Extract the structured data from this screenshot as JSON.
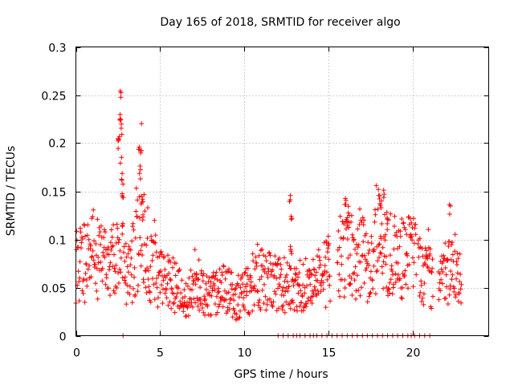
{
  "chart_data": {
    "type": "scatter",
    "title": "Day 165 of 2018, SRMTID for receiver algo",
    "xlabel": "GPS time / hours",
    "ylabel": "SRMTID / TECUs",
    "xlim": [
      0,
      24.5
    ],
    "ylim": [
      0,
      0.3
    ],
    "x_ticks": [
      0,
      5,
      10,
      15,
      20
    ],
    "x_tick_labels": [
      "0",
      "5",
      "10",
      "15",
      "20"
    ],
    "y_ticks": [
      0,
      0.05,
      0.1,
      0.15,
      0.2,
      0.25,
      0.3
    ],
    "y_tick_labels": [
      "0",
      "0.05",
      "0.1",
      "0.15",
      "0.2",
      "0.25",
      "0.3"
    ],
    "grid": true,
    "marker": "+",
    "color": "#ff0000",
    "series": [
      {
        "name": "SRMTID",
        "trend": [
          [
            0.0,
            0.075
          ],
          [
            0.5,
            0.075
          ],
          [
            1.0,
            0.085
          ],
          [
            1.5,
            0.08
          ],
          [
            2.0,
            0.07
          ],
          [
            2.5,
            0.08
          ],
          [
            2.7,
            0.15
          ],
          [
            3.0,
            0.07
          ],
          [
            3.5,
            0.075
          ],
          [
            3.9,
            0.13
          ],
          [
            4.3,
            0.08
          ],
          [
            5.0,
            0.06
          ],
          [
            6.0,
            0.05
          ],
          [
            6.5,
            0.035
          ],
          [
            7.0,
            0.05
          ],
          [
            8.0,
            0.045
          ],
          [
            9.0,
            0.05
          ],
          [
            9.5,
            0.035
          ],
          [
            10.0,
            0.045
          ],
          [
            11.0,
            0.06
          ],
          [
            12.0,
            0.055
          ],
          [
            12.7,
            0.05
          ],
          [
            13.0,
            0.045
          ],
          [
            14.0,
            0.05
          ],
          [
            14.8,
            0.065
          ],
          [
            15.5,
            0.08
          ],
          [
            16.0,
            0.09
          ],
          [
            17.0,
            0.08
          ],
          [
            17.5,
            0.07
          ],
          [
            18.0,
            0.1
          ],
          [
            18.5,
            0.09
          ],
          [
            19.0,
            0.08
          ],
          [
            20.0,
            0.08
          ],
          [
            20.5,
            0.065
          ],
          [
            21.0,
            0.06
          ],
          [
            21.5,
            0.055
          ],
          [
            22.0,
            0.065
          ],
          [
            22.7,
            0.06
          ],
          [
            23.0,
            0.045
          ]
        ],
        "spikes": [
          [
            2.5,
            0.205
          ],
          [
            2.55,
            0.215
          ],
          [
            2.62,
            0.235
          ],
          [
            2.65,
            0.258
          ],
          [
            2.7,
            0.225
          ],
          [
            2.72,
            0.172
          ],
          [
            2.75,
            0.15
          ],
          [
            2.78,
            0.12
          ],
          [
            3.75,
            0.205
          ],
          [
            3.8,
            0.18
          ],
          [
            3.85,
            0.2
          ],
          [
            3.9,
            0.145
          ],
          [
            3.95,
            0.13
          ],
          [
            12.7,
            0.147
          ],
          [
            12.8,
            0.13
          ],
          [
            12.75,
            0.095
          ],
          [
            16.0,
            0.143
          ],
          [
            16.2,
            0.128
          ],
          [
            16.1,
            0.12
          ],
          [
            18.0,
            0.15
          ],
          [
            18.3,
            0.155
          ],
          [
            18.5,
            0.128
          ],
          [
            18.1,
            0.14
          ],
          [
            22.2,
            0.138
          ],
          [
            15.0,
            0.1
          ]
        ],
        "zeros": [
          2.8,
          12.0,
          12.3,
          12.6,
          12.9,
          13.1,
          13.3,
          13.6,
          13.9,
          14.1,
          14.3,
          14.6,
          14.9,
          15.2,
          15.5,
          15.8,
          16.1,
          16.4,
          16.7,
          17.0,
          17.3,
          17.6,
          17.9,
          18.2,
          18.5,
          18.8,
          19.1,
          19.4,
          19.7,
          19.9,
          20.1,
          20.4,
          20.7,
          21.0
        ],
        "gaps": [
          [
            15.1,
            15.5
          ],
          [
            20.2,
            20.3
          ],
          [
            21.2,
            21.5
          ],
          [
            23.0,
            24.5
          ]
        ]
      }
    ]
  }
}
